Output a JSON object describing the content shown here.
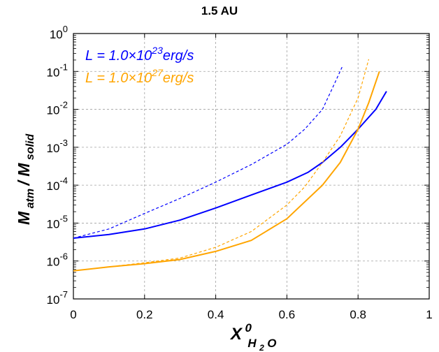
{
  "chart_data": {
    "type": "line",
    "title": "1.5 AU",
    "xlabel": {
      "main": "X",
      "sup": "0",
      "sub": "H",
      "sub2": "2",
      "sub3": "O"
    },
    "ylabel": {
      "part1": "M",
      "part1_sub": "atm",
      "sep": " / ",
      "part2": "M",
      "part2_sub": "solid"
    },
    "xlim": [
      0,
      1
    ],
    "ylim_log10": [
      -7,
      0
    ],
    "y_scale": "log",
    "grid": true,
    "legend_position": "top-left",
    "x_ticks": [
      "0",
      "0.2",
      "0.4",
      "0.6",
      "0.8",
      "1"
    ],
    "y_ticks": [
      {
        "base": "10",
        "exp": "0"
      },
      {
        "base": "10",
        "exp": "-1"
      },
      {
        "base": "10",
        "exp": "-2"
      },
      {
        "base": "10",
        "exp": "-3"
      },
      {
        "base": "10",
        "exp": "-4"
      },
      {
        "base": "10",
        "exp": "-5"
      },
      {
        "base": "10",
        "exp": "-6"
      },
      {
        "base": "10",
        "exp": "-7"
      }
    ],
    "legend": [
      {
        "prefix": "L = 1.0×10",
        "exp": "23",
        "suffix": "erg/s",
        "color": "#0000ff"
      },
      {
        "prefix": "L = 1.0×10",
        "exp": "27",
        "suffix": "erg/s",
        "color": "#ffa500"
      }
    ],
    "series": [
      {
        "color": "#0000ff",
        "style": "solid",
        "x": [
          0,
          0.1,
          0.2,
          0.3,
          0.4,
          0.5,
          0.6,
          0.66,
          0.7,
          0.75,
          0.8,
          0.85,
          0.88
        ],
        "y": [
          4e-06,
          5e-06,
          7e-06,
          1.2e-05,
          2.5e-05,
          5.5e-05,
          0.00012,
          0.00022,
          0.0004,
          0.001,
          0.003,
          0.01,
          0.03
        ]
      },
      {
        "color": "#0000ff",
        "style": "dashed",
        "x": [
          0,
          0.1,
          0.2,
          0.3,
          0.4,
          0.5,
          0.6,
          0.65,
          0.7,
          0.73,
          0.755
        ],
        "y": [
          4e-06,
          7e-06,
          1.8e-05,
          4.5e-05,
          0.00012,
          0.00035,
          0.0012,
          0.003,
          0.01,
          0.04,
          0.13
        ]
      },
      {
        "color": "#ffa500",
        "style": "solid",
        "x": [
          0,
          0.1,
          0.2,
          0.3,
          0.4,
          0.5,
          0.6,
          0.7,
          0.75,
          0.8,
          0.83,
          0.86
        ],
        "y": [
          5.5e-07,
          7e-07,
          8.5e-07,
          1.1e-06,
          1.8e-06,
          3.5e-06,
          1.3e-05,
          0.0001,
          0.0004,
          0.003,
          0.015,
          0.1
        ]
      },
      {
        "color": "#ffa500",
        "style": "dashed",
        "x": [
          0,
          0.1,
          0.2,
          0.3,
          0.4,
          0.5,
          0.6,
          0.65,
          0.7,
          0.75,
          0.8,
          0.83
        ],
        "y": [
          5.5e-07,
          7e-07,
          9e-07,
          1.2e-06,
          2.3e-06,
          6e-06,
          3e-05,
          9e-05,
          0.0004,
          0.002,
          0.02,
          0.21
        ]
      }
    ]
  }
}
